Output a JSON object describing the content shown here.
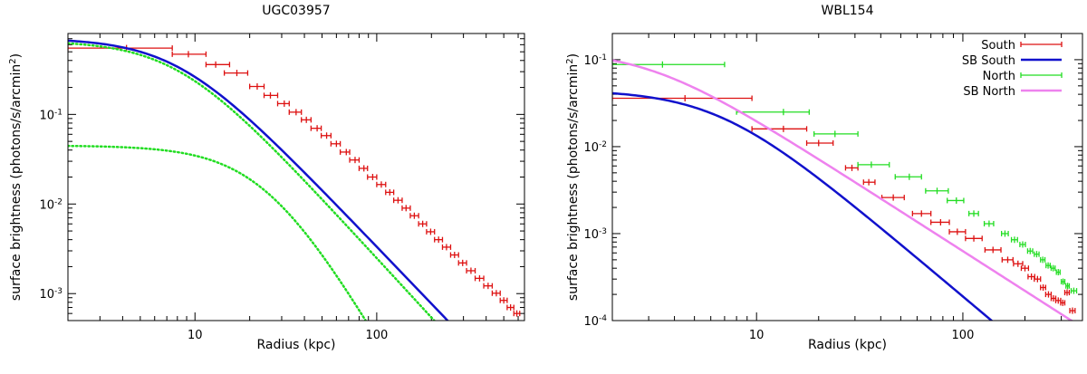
{
  "chart_data": [
    {
      "type": "line",
      "title": "UGC03957",
      "xlabel": "Radius (kpc)",
      "ylabel": "surface brightness (photons/s/arcmin",
      "ylabel_sup": "2",
      "ylabel_end": ")",
      "x_scale": "log",
      "y_scale": "log",
      "xlim": [
        2,
        650
      ],
      "ylim": [
        0.0005,
        0.8
      ],
      "x_ticks": [
        {
          "v": 10,
          "label": "10"
        },
        {
          "v": 100,
          "label": "100"
        }
      ],
      "y_ticks": [
        {
          "v": 0.1,
          "base": "10",
          "exp": "-1"
        },
        {
          "v": 0.01,
          "base": "10",
          "exp": "-2"
        },
        {
          "v": 0.001,
          "base": "10",
          "exp": "-3"
        }
      ],
      "grid": false,
      "legend": null,
      "params": {
        "model_total": {
          "S0": 0.71,
          "rc": 8.0,
          "beta": 0.52
        },
        "component_1": {
          "S0": 0.665,
          "rc": 8.0,
          "beta": 0.535
        },
        "component_2": {
          "S0": 0.045,
          "rc": 25.0,
          "beta": 0.75
        }
      },
      "series": [
        {
          "name": "",
          "kind": "errorbar",
          "color": "#dd1111",
          "points": [
            {
              "x": 4.2,
              "xlo": 2.0,
              "xhi": 7.5,
              "y": 0.55
            },
            {
              "x": 9.2,
              "xlo": 7.5,
              "xhi": 11.5,
              "y": 0.47
            },
            {
              "x": 13.0,
              "xlo": 11.5,
              "xhi": 15.5,
              "y": 0.36
            },
            {
              "x": 17.0,
              "xlo": 14.5,
              "xhi": 19.5,
              "y": 0.29
            },
            {
              "x": 22.0,
              "xlo": 20.0,
              "xhi": 24.0,
              "y": 0.205
            },
            {
              "x": 26.0,
              "xlo": 24.0,
              "xhi": 28.5,
              "y": 0.163
            },
            {
              "x": 31.0,
              "xlo": 28.5,
              "xhi": 33.0,
              "y": 0.132
            },
            {
              "x": 36.0,
              "xlo": 33.0,
              "xhi": 38.5,
              "y": 0.106
            },
            {
              "x": 41.0,
              "xlo": 38.5,
              "xhi": 43.5,
              "y": 0.087
            },
            {
              "x": 47.0,
              "xlo": 43.5,
              "xhi": 49.5,
              "y": 0.07
            },
            {
              "x": 53.0,
              "xlo": 49.5,
              "xhi": 56.0,
              "y": 0.058
            },
            {
              "x": 60.0,
              "xlo": 56.0,
              "xhi": 63.0,
              "y": 0.047
            },
            {
              "x": 68.0,
              "xlo": 63.0,
              "xhi": 71.0,
              "y": 0.038
            },
            {
              "x": 76.0,
              "xlo": 71.0,
              "xhi": 80.0,
              "y": 0.031
            },
            {
              "x": 85.0,
              "xlo": 80.0,
              "xhi": 89.0,
              "y": 0.025
            },
            {
              "x": 95.0,
              "xlo": 89.0,
              "xhi": 100.0,
              "y": 0.02
            },
            {
              "x": 106.0,
              "xlo": 100.0,
              "xhi": 112.0,
              "y": 0.0165
            },
            {
              "x": 118.0,
              "xlo": 112.0,
              "xhi": 124.0,
              "y": 0.0135
            },
            {
              "x": 131.0,
              "xlo": 124.0,
              "xhi": 138.0,
              "y": 0.011
            },
            {
              "x": 145.0,
              "xlo": 138.0,
              "xhi": 153.0,
              "y": 0.009
            },
            {
              "x": 161.0,
              "xlo": 153.0,
              "xhi": 170.0,
              "y": 0.0074
            },
            {
              "x": 179.0,
              "xlo": 170.0,
              "xhi": 188.0,
              "y": 0.006
            },
            {
              "x": 198.0,
              "xlo": 188.0,
              "xhi": 208.0,
              "y": 0.0049
            },
            {
              "x": 219.0,
              "xlo": 208.0,
              "xhi": 230.0,
              "y": 0.004
            },
            {
              "x": 242.0,
              "xlo": 230.0,
              "xhi": 255.0,
              "y": 0.0033
            },
            {
              "x": 268.0,
              "xlo": 255.0,
              "xhi": 282.0,
              "y": 0.0027
            },
            {
              "x": 297.0,
              "xlo": 282.0,
              "xhi": 312.0,
              "y": 0.0022
            },
            {
              "x": 330.0,
              "xlo": 312.0,
              "xhi": 348.0,
              "y": 0.0018
            },
            {
              "x": 368.0,
              "xlo": 348.0,
              "xhi": 388.0,
              "y": 0.00148
            },
            {
              "x": 410.0,
              "xlo": 388.0,
              "xhi": 432.0,
              "y": 0.00122
            },
            {
              "x": 455.0,
              "xlo": 432.0,
              "xhi": 478.0,
              "y": 0.00101
            },
            {
              "x": 500.0,
              "xlo": 478.0,
              "xhi": 522.0,
              "y": 0.00084
            },
            {
              "x": 545.0,
              "xlo": 522.0,
              "xhi": 568.0,
              "y": 0.0007
            },
            {
              "x": 590.0,
              "xlo": 568.0,
              "xhi": 612.0,
              "y": 0.0006
            }
          ]
        },
        {
          "name": "",
          "kind": "model",
          "color": "#1111cc",
          "width": 2.5,
          "dash": "",
          "param": "model_total"
        },
        {
          "name": "",
          "kind": "model",
          "color": "#22dd22",
          "width": 2.5,
          "dash": "1.5,3",
          "param": "component_1"
        },
        {
          "name": "",
          "kind": "model",
          "color": "#22dd22",
          "width": 2.5,
          "dash": "1.5,3",
          "param": "component_2"
        }
      ]
    },
    {
      "type": "line",
      "title": "WBL154",
      "xlabel": "Radius (kpc)",
      "ylabel": "surface brightness (photons/s/arcmin",
      "ylabel_sup": "2",
      "ylabel_end": ")",
      "x_scale": "log",
      "y_scale": "log",
      "xlim": [
        2,
        380
      ],
      "ylim": [
        0.0001,
        0.2
      ],
      "x_ticks": [
        {
          "v": 10,
          "label": "10"
        },
        {
          "v": 100,
          "label": "100"
        }
      ],
      "y_ticks": [
        {
          "v": 0.1,
          "base": "10",
          "exp": "-1"
        },
        {
          "v": 0.01,
          "base": "10",
          "exp": "-2"
        },
        {
          "v": 0.001,
          "base": "10",
          "exp": "-3"
        },
        {
          "v": 0.0001,
          "base": "10",
          "exp": "-4"
        }
      ],
      "grid": false,
      "legend": "top-right",
      "params": {
        "sb_south": {
          "S0": 0.045,
          "rc": 6.5,
          "beta": 0.5
        },
        "sb_north": {
          "S0": 0.13,
          "rc": 3.0,
          "beta": 0.42
        }
      },
      "series": [
        {
          "name": "South",
          "kind": "errorbar",
          "color": "#dd1111",
          "points": [
            {
              "x": 4.5,
              "xlo": 2.0,
              "xhi": 9.5,
              "y": 0.036
            },
            {
              "x": 13.5,
              "xlo": 9.5,
              "xhi": 17.5,
              "y": 0.016
            },
            {
              "x": 20.0,
              "xlo": 17.5,
              "xhi": 23.5,
              "y": 0.011
            },
            {
              "x": 29.0,
              "xlo": 27.0,
              "xhi": 31.0,
              "y": 0.0057
            },
            {
              "x": 35.0,
              "xlo": 33.0,
              "xhi": 37.5,
              "y": 0.0039
            },
            {
              "x": 46.0,
              "xlo": 40.5,
              "xhi": 52.0,
              "y": 0.0026
            },
            {
              "x": 63.0,
              "xlo": 57.0,
              "xhi": 70.0,
              "y": 0.0017
            },
            {
              "x": 78.0,
              "xlo": 70.0,
              "xhi": 86.0,
              "y": 0.00135
            },
            {
              "x": 94.0,
              "xlo": 86.0,
              "xhi": 103.0,
              "y": 0.00105
            },
            {
              "x": 113.0,
              "xlo": 103.0,
              "xhi": 124.0,
              "y": 0.00088
            },
            {
              "x": 140.0,
              "xlo": 128.0,
              "xhi": 153.0,
              "y": 0.00065
            },
            {
              "x": 165.0,
              "xlo": 155.0,
              "xhi": 175.0,
              "y": 0.0005
            },
            {
              "x": 185.0,
              "xlo": 176.0,
              "xhi": 195.0,
              "y": 0.00045
            },
            {
              "x": 200.0,
              "xlo": 192.0,
              "xhi": 208.0,
              "y": 0.0004
            },
            {
              "x": 215.0,
              "xlo": 207.0,
              "xhi": 223.0,
              "y": 0.00032
            },
            {
              "x": 230.0,
              "xlo": 222.0,
              "xhi": 238.0,
              "y": 0.0003
            },
            {
              "x": 245.0,
              "xlo": 238.0,
              "xhi": 252.0,
              "y": 0.00024
            },
            {
              "x": 260.0,
              "xlo": 252.0,
              "xhi": 268.0,
              "y": 0.0002
            },
            {
              "x": 275.0,
              "xlo": 268.0,
              "xhi": 282.0,
              "y": 0.00018
            },
            {
              "x": 290.0,
              "xlo": 282.0,
              "xhi": 298.0,
              "y": 0.00017
            },
            {
              "x": 305.0,
              "xlo": 298.0,
              "xhi": 312.0,
              "y": 0.00016
            },
            {
              "x": 320.0,
              "xlo": 312.0,
              "xhi": 328.0,
              "y": 0.00021
            },
            {
              "x": 340.0,
              "xlo": 330.0,
              "xhi": 350.0,
              "y": 0.00013
            }
          ]
        },
        {
          "name": "SB South",
          "kind": "model",
          "color": "#1111cc",
          "width": 2.5,
          "dash": "",
          "param": "sb_south"
        },
        {
          "name": "North",
          "kind": "errorbar",
          "color": "#22dd22",
          "points": [
            {
              "x": 3.5,
              "xlo": 2.0,
              "xhi": 7.0,
              "y": 0.088
            },
            {
              "x": 13.5,
              "xlo": 8.0,
              "xhi": 18.0,
              "y": 0.025
            },
            {
              "x": 24.0,
              "xlo": 19.0,
              "xhi": 31.0,
              "y": 0.014
            },
            {
              "x": 36.0,
              "xlo": 31.0,
              "xhi": 44.0,
              "y": 0.0062
            },
            {
              "x": 55.0,
              "xlo": 47.0,
              "xhi": 63.0,
              "y": 0.0045
            },
            {
              "x": 75.0,
              "xlo": 66.0,
              "xhi": 85.0,
              "y": 0.0031
            },
            {
              "x": 93.0,
              "xlo": 84.0,
              "xhi": 101.0,
              "y": 0.0024
            },
            {
              "x": 113.0,
              "xlo": 107.0,
              "xhi": 119.0,
              "y": 0.0017
            },
            {
              "x": 134.0,
              "xlo": 127.0,
              "xhi": 141.0,
              "y": 0.0013
            },
            {
              "x": 160.0,
              "xlo": 154.0,
              "xhi": 166.0,
              "y": 0.001
            },
            {
              "x": 178.0,
              "xlo": 172.0,
              "xhi": 184.0,
              "y": 0.00085
            },
            {
              "x": 195.0,
              "xlo": 189.0,
              "xhi": 201.0,
              "y": 0.00075
            },
            {
              "x": 212.0,
              "xlo": 206.0,
              "xhi": 218.0,
              "y": 0.00063
            },
            {
              "x": 228.0,
              "xlo": 222.0,
              "xhi": 234.0,
              "y": 0.00058
            },
            {
              "x": 244.0,
              "xlo": 238.0,
              "xhi": 250.0,
              "y": 0.0005
            },
            {
              "x": 259.0,
              "xlo": 253.0,
              "xhi": 265.0,
              "y": 0.00043
            },
            {
              "x": 274.0,
              "xlo": 268.0,
              "xhi": 280.0,
              "y": 0.0004
            },
            {
              "x": 290.0,
              "xlo": 284.0,
              "xhi": 296.0,
              "y": 0.00036
            },
            {
              "x": 306.0,
              "xlo": 300.0,
              "xhi": 312.0,
              "y": 0.00028
            },
            {
              "x": 322.0,
              "xlo": 316.0,
              "xhi": 328.0,
              "y": 0.00025
            },
            {
              "x": 345.0,
              "xlo": 335.0,
              "xhi": 356.0,
              "y": 0.00022
            }
          ]
        },
        {
          "name": "SB North",
          "kind": "model",
          "color": "#ee82ee",
          "width": 2.5,
          "dash": "",
          "param": "sb_north"
        }
      ]
    }
  ]
}
